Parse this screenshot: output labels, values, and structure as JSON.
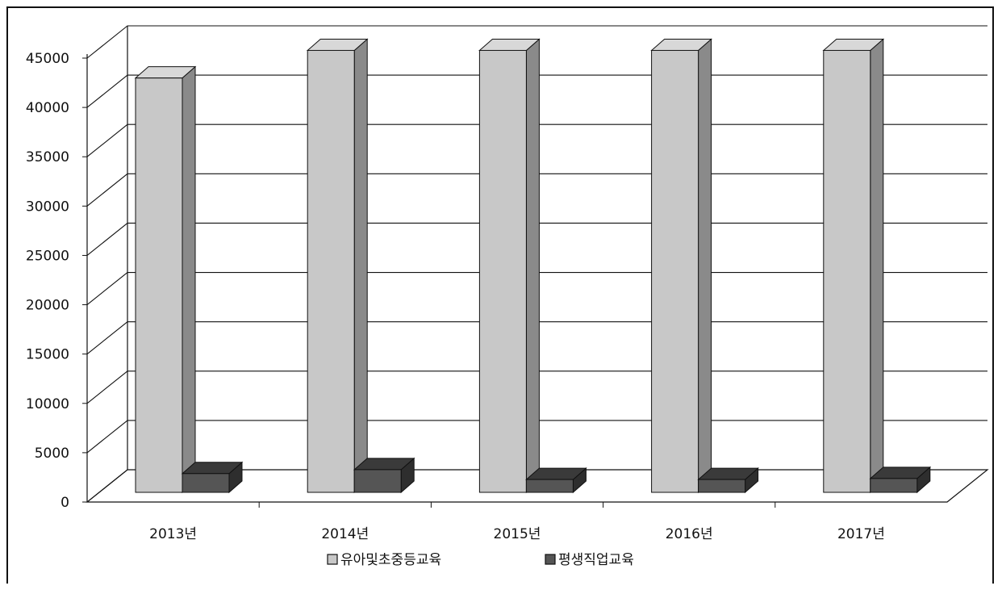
{
  "chart_data": {
    "type": "bar",
    "categories": [
      "2013년",
      "2014년",
      "2015년",
      "2016년",
      "2017년"
    ],
    "series": [
      {
        "name": "유아및초중등교육",
        "values": [
          42000,
          44800,
          44800,
          44800,
          44800
        ],
        "color": "#c8c8c8"
      },
      {
        "name": "평생직업교육",
        "values": [
          1900,
          2300,
          1300,
          1300,
          1400
        ],
        "color": "#555555"
      }
    ],
    "ylim": [
      0,
      45000
    ],
    "yticks": [
      "0",
      "5000",
      "10000",
      "15000",
      "20000",
      "25000",
      "30000",
      "35000",
      "40000",
      "45000"
    ],
    "grid": true,
    "legend": "bottom",
    "style": "3d"
  }
}
